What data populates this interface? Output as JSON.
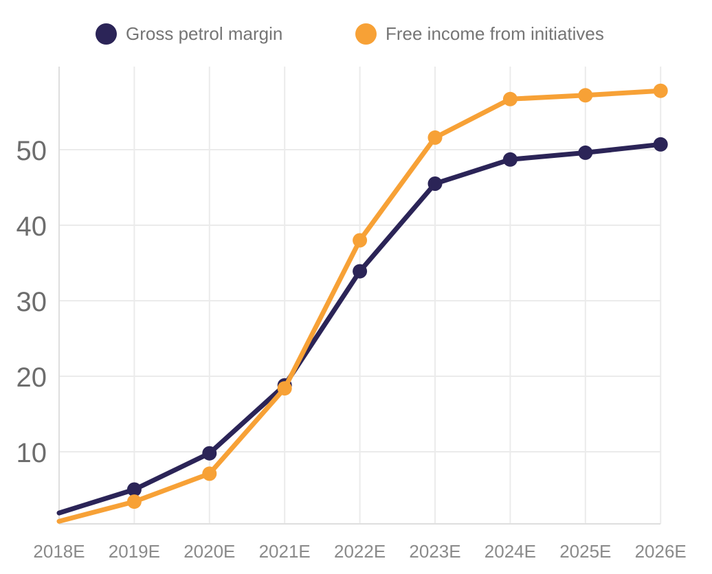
{
  "chart_data": {
    "type": "line",
    "categories": [
      "2018E",
      "2019E",
      "2020E",
      "2021E",
      "2022E",
      "2023E",
      "2024E",
      "2025E",
      "2026E"
    ],
    "series": [
      {
        "name": "Gross petrol margin",
        "color": "#2b2457",
        "values": [
          1.9,
          5.0,
          9.8,
          18.8,
          33.9,
          45.5,
          48.7,
          49.6,
          50.7
        ]
      },
      {
        "name": "Free income from initiatives",
        "color": "#f7a136",
        "values": [
          0.8,
          3.4,
          7.1,
          18.4,
          38.0,
          51.6,
          56.7,
          57.2,
          57.8
        ]
      }
    ],
    "y_ticks": [
      10,
      20,
      30,
      40,
      50
    ],
    "ylim": [
      0,
      61
    ],
    "grid": true,
    "legend_position": "top",
    "marker": "circle",
    "first_point_marker_hidden": true
  },
  "legend": {
    "items": [
      {
        "label": "Gross petrol margin",
        "color": "#2b2457"
      },
      {
        "label": "Free income from initiatives",
        "color": "#f7a136"
      }
    ]
  },
  "style": {
    "background": "#ffffff",
    "grid_color": "#ebebeb",
    "axis_color": "#dedede",
    "x_label_color": "#8a8a8a",
    "y_label_color": "#6d6d6d",
    "legend_text_color": "#757575"
  }
}
